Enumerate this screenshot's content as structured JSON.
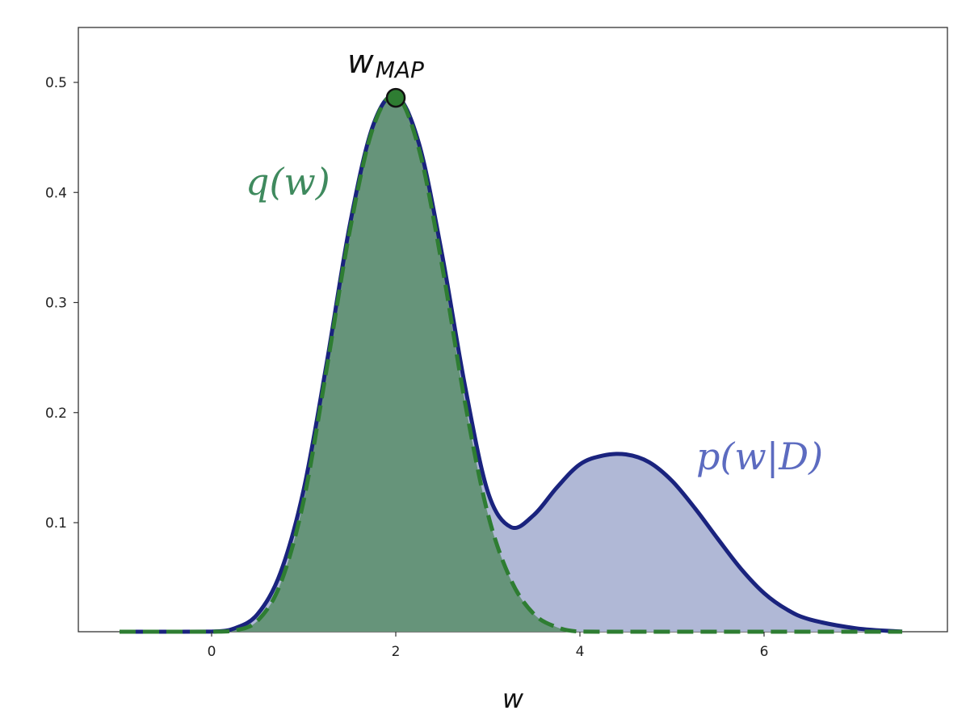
{
  "chart_data": {
    "type": "area",
    "xlabel": "w",
    "xlim": [
      -1.5,
      7.8
    ],
    "ylim": [
      0.0,
      0.55
    ],
    "x_ticks": [
      0,
      2,
      4,
      6
    ],
    "y_ticks": [
      0.1,
      0.2,
      0.3,
      0.4,
      0.5
    ],
    "grid": false,
    "series": [
      {
        "name": "p(w|D)",
        "style": "solid",
        "color": "#1a237e",
        "fill": "#b0b8d6",
        "x": [
          -1.0,
          -0.5,
          0.0,
          0.25,
          0.5,
          0.75,
          1.0,
          1.25,
          1.5,
          1.75,
          2.0,
          2.25,
          2.5,
          2.75,
          3.0,
          3.25,
          3.5,
          3.75,
          4.0,
          4.25,
          4.5,
          4.75,
          5.0,
          5.25,
          5.5,
          5.75,
          6.0,
          6.25,
          6.5,
          7.0,
          7.5
        ],
        "y": [
          0.0,
          0.0,
          0.001,
          0.004,
          0.017,
          0.055,
          0.13,
          0.245,
          0.37,
          0.46,
          0.488,
          0.445,
          0.345,
          0.225,
          0.128,
          0.096,
          0.107,
          0.132,
          0.153,
          0.161,
          0.162,
          0.155,
          0.138,
          0.113,
          0.085,
          0.058,
          0.036,
          0.021,
          0.012,
          0.004,
          0.001
        ]
      },
      {
        "name": "q(w)",
        "style": "dashed",
        "color": "#2e7d32",
        "fill": "#66947a",
        "x": [
          -1.0,
          -0.5,
          0.0,
          0.25,
          0.5,
          0.75,
          1.0,
          1.25,
          1.5,
          1.75,
          2.0,
          2.25,
          2.5,
          2.75,
          3.0,
          3.25,
          3.5,
          3.75,
          4.0,
          4.5,
          5.0,
          6.0,
          7.0,
          7.5
        ],
        "y": [
          0.0,
          0.0,
          0.0,
          0.002,
          0.011,
          0.045,
          0.12,
          0.24,
          0.365,
          0.458,
          0.488,
          0.44,
          0.335,
          0.21,
          0.108,
          0.048,
          0.017,
          0.005,
          0.001,
          0.0,
          0.0,
          0.0,
          0.0,
          0.0
        ]
      }
    ],
    "point": {
      "x": 2.0,
      "y": 0.486,
      "color": "#2e7d32"
    },
    "annotations": {
      "w_map_base": "w",
      "w_map_sub": "MAP",
      "q_label": "q(w)",
      "p_label": "p(w|D)",
      "q_color": "#3f8a5e",
      "p_color": "#5c6bc0"
    }
  }
}
